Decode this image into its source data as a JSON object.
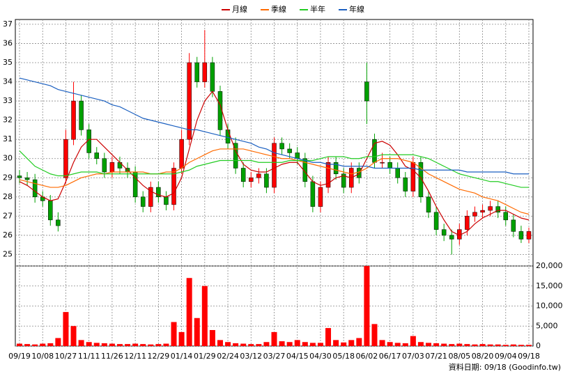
{
  "chart_data": {
    "type": "candlestick",
    "legend": "top",
    "grid": true,
    "source": "資料日期: 09/18 (Goodinfo.tw)",
    "up_color": "#ff0000",
    "down_color": "#00a000",
    "categories": [
      "09/19",
      null,
      null,
      "10/08",
      null,
      null,
      "10/27",
      null,
      null,
      "11/11",
      null,
      null,
      "11/26",
      null,
      null,
      "12/11",
      null,
      null,
      "12/29",
      null,
      null,
      "01/14",
      null,
      null,
      "01/29",
      null,
      null,
      "02/24",
      null,
      null,
      "03/12",
      null,
      null,
      "03/27",
      null,
      null,
      "04/15",
      null,
      null,
      "04/30",
      null,
      null,
      "05/18",
      null,
      null,
      "06/02",
      null,
      null,
      "06/17",
      null,
      null,
      "07/03",
      null,
      null,
      "07/21",
      null,
      null,
      "08/05",
      null,
      null,
      "08/20",
      null,
      null,
      "09/04",
      null,
      null,
      "09/18"
    ],
    "open": [
      29.1,
      29.0,
      28.9,
      28.0,
      27.8,
      26.8,
      29.0,
      31.0,
      33.0,
      31.5,
      30.3,
      30.0,
      29.3,
      29.8,
      29.5,
      29.3,
      28.0,
      27.5,
      28.5,
      28.0,
      27.6,
      29.5,
      31.0,
      35.0,
      34.0,
      35.0,
      33.5,
      31.5,
      30.8,
      29.5,
      28.8,
      29.0,
      29.2,
      28.5,
      30.8,
      30.5,
      30.3,
      30.0,
      28.8,
      27.5,
      28.5,
      29.8,
      29.2,
      28.5,
      29.5,
      34.0,
      31.0,
      29.8,
      29.8,
      29.5,
      29.0,
      28.3,
      29.8,
      28.0,
      27.2,
      26.3,
      26.0,
      25.8,
      26.3,
      27.0,
      27.2,
      27.3,
      27.5,
      27.2,
      26.8,
      26.2,
      25.8
    ],
    "high": [
      29.4,
      29.3,
      29.2,
      28.3,
      28.1,
      27.2,
      31.5,
      34.0,
      33.3,
      31.8,
      30.6,
      30.3,
      30.1,
      30.1,
      29.8,
      29.6,
      28.3,
      28.8,
      28.8,
      28.3,
      29.8,
      31.5,
      35.5,
      35.3,
      36.7,
      35.3,
      33.8,
      31.8,
      31.1,
      29.8,
      29.3,
      29.5,
      29.5,
      31.1,
      31.1,
      30.8,
      30.6,
      30.3,
      29.1,
      28.8,
      30.1,
      30.1,
      29.5,
      29.8,
      29.8,
      35.0,
      31.3,
      30.3,
      30.1,
      29.8,
      29.3,
      30.1,
      30.1,
      28.3,
      27.5,
      26.6,
      26.3,
      26.6,
      27.3,
      27.5,
      27.6,
      27.8,
      27.8,
      27.5,
      27.1,
      26.5,
      26.4
    ],
    "low": [
      28.7,
      28.6,
      27.7,
      27.5,
      26.5,
      26.2,
      28.7,
      30.7,
      31.2,
      30.0,
      29.7,
      29.0,
      29.0,
      29.2,
      29.0,
      27.7,
      27.2,
      27.2,
      27.7,
      27.3,
      27.3,
      29.2,
      30.7,
      33.7,
      33.7,
      33.2,
      31.2,
      30.5,
      29.2,
      28.5,
      28.5,
      28.7,
      28.2,
      28.2,
      30.2,
      30.0,
      29.7,
      28.5,
      27.2,
      27.2,
      28.2,
      28.9,
      28.2,
      28.2,
      28.7,
      31.8,
      29.5,
      29.5,
      29.2,
      28.7,
      28.0,
      28.0,
      27.7,
      26.9,
      26.0,
      25.7,
      25.0,
      25.5,
      26.0,
      26.7,
      26.9,
      27.0,
      26.9,
      26.5,
      25.9,
      25.6,
      25.6
    ],
    "close": [
      29.0,
      28.9,
      28.0,
      27.8,
      26.8,
      26.5,
      31.0,
      33.0,
      31.5,
      30.3,
      30.0,
      29.3,
      29.8,
      29.5,
      29.3,
      28.0,
      27.5,
      28.5,
      28.0,
      27.6,
      29.5,
      31.0,
      35.0,
      34.0,
      35.0,
      33.5,
      31.5,
      30.8,
      29.5,
      28.8,
      29.0,
      29.2,
      28.5,
      30.8,
      30.5,
      30.3,
      30.0,
      28.8,
      27.5,
      28.5,
      29.8,
      29.2,
      28.5,
      29.5,
      29.0,
      33.0,
      29.8,
      29.8,
      29.5,
      29.0,
      28.3,
      29.8,
      28.0,
      27.2,
      26.3,
      26.0,
      25.8,
      26.3,
      27.0,
      27.2,
      27.3,
      27.5,
      27.2,
      26.8,
      26.2,
      25.8,
      26.2
    ],
    "series": [
      {
        "name": "月線",
        "color": "#cc0000",
        "values": [
          28.8,
          28.6,
          28.3,
          28.0,
          27.8,
          27.9,
          28.8,
          29.8,
          30.6,
          31.0,
          31.0,
          30.6,
          30.2,
          29.8,
          29.4,
          29.0,
          28.6,
          28.3,
          28.1,
          28.0,
          28.2,
          29.0,
          30.5,
          32.0,
          33.0,
          33.5,
          32.8,
          31.5,
          30.4,
          29.7,
          29.4,
          29.3,
          29.3,
          29.5,
          29.7,
          29.8,
          29.8,
          29.3,
          28.8,
          28.6,
          28.7,
          29.0,
          29.1,
          29.0,
          29.2,
          30.0,
          30.8,
          30.9,
          30.7,
          30.2,
          29.6,
          29.4,
          29.0,
          28.3,
          27.5,
          26.8,
          26.2,
          26.0,
          26.2,
          26.6,
          26.9,
          27.1,
          27.3,
          27.3,
          27.1,
          26.9,
          26.8
        ]
      },
      {
        "name": "季線",
        "color": "#ff6a00",
        "values": [
          28.9,
          28.8,
          28.7,
          28.6,
          28.5,
          28.5,
          28.6,
          28.8,
          29.0,
          29.1,
          29.2,
          29.2,
          29.3,
          29.3,
          29.3,
          29.3,
          29.3,
          29.2,
          29.2,
          29.3,
          29.3,
          29.5,
          29.8,
          30.0,
          30.2,
          30.4,
          30.5,
          30.5,
          30.5,
          30.5,
          30.4,
          30.3,
          30.2,
          30.1,
          30.0,
          30.0,
          29.9,
          29.8,
          29.7,
          29.6,
          29.5,
          29.4,
          29.3,
          29.2,
          29.3,
          29.5,
          29.8,
          30.0,
          30.0,
          30.0,
          29.9,
          29.8,
          29.5,
          29.2,
          29.0,
          28.8,
          28.6,
          28.4,
          28.3,
          28.2,
          28.0,
          27.9,
          27.8,
          27.6,
          27.4,
          27.2,
          27.1
        ]
      },
      {
        "name": "半年",
        "color": "#22cc22",
        "values": [
          30.4,
          30.0,
          29.6,
          29.4,
          29.2,
          29.1,
          29.1,
          29.2,
          29.3,
          29.3,
          29.3,
          29.2,
          29.2,
          29.2,
          29.2,
          29.2,
          29.2,
          29.2,
          29.2,
          29.2,
          29.2,
          29.3,
          29.4,
          29.6,
          29.7,
          29.8,
          29.9,
          29.9,
          29.9,
          29.9,
          29.9,
          29.8,
          29.8,
          29.8,
          29.8,
          29.9,
          29.9,
          29.9,
          29.9,
          30.0,
          30.1,
          30.1,
          30.1,
          30.0,
          30.0,
          30.1,
          30.1,
          30.2,
          30.2,
          30.2,
          30.2,
          30.2,
          30.1,
          30.0,
          29.8,
          29.6,
          29.4,
          29.2,
          29.1,
          29.0,
          28.9,
          28.8,
          28.8,
          28.7,
          28.6,
          28.5,
          28.5
        ]
      },
      {
        "name": "年線",
        "color": "#1a5fc0",
        "values": [
          34.2,
          34.1,
          34.0,
          33.9,
          33.8,
          33.6,
          33.5,
          33.4,
          33.3,
          33.2,
          33.1,
          33.0,
          32.8,
          32.7,
          32.5,
          32.3,
          32.1,
          32.0,
          31.9,
          31.8,
          31.7,
          31.6,
          31.5,
          31.5,
          31.4,
          31.3,
          31.2,
          31.1,
          31.0,
          30.9,
          30.8,
          30.6,
          30.5,
          30.3,
          30.2,
          30.1,
          30.0,
          29.9,
          29.8,
          29.8,
          29.7,
          29.7,
          29.6,
          29.6,
          29.6,
          29.6,
          29.5,
          29.5,
          29.5,
          29.5,
          29.5,
          29.5,
          29.4,
          29.4,
          29.4,
          29.4,
          29.4,
          29.4,
          29.3,
          29.3,
          29.3,
          29.3,
          29.3,
          29.3,
          29.2,
          29.2,
          29.2
        ]
      }
    ],
    "ylim": [
      24.4,
      37.25
    ],
    "yticks": [
      25,
      26,
      27,
      28,
      29,
      30,
      31,
      32,
      33,
      34,
      35,
      36,
      37
    ],
    "volume": {
      "color": "#ff0000",
      "values": [
        600,
        500,
        400,
        600,
        700,
        2000,
        8500,
        5000,
        1500,
        1000,
        800,
        700,
        600,
        500,
        500,
        600,
        500,
        400,
        500,
        600,
        6000,
        3500,
        17000,
        7000,
        15000,
        4000,
        1500,
        1000,
        700,
        600,
        500,
        500,
        1000,
        3500,
        1200,
        1000,
        1500,
        1000,
        800,
        800,
        4500,
        1500,
        900,
        1500,
        2000,
        20000,
        5500,
        1500,
        1000,
        800,
        700,
        2500,
        1000,
        800,
        700,
        600,
        500,
        600,
        500,
        400,
        500,
        400,
        400,
        300,
        400,
        300,
        300
      ],
      "ylim": [
        0,
        20000
      ],
      "yticks": [
        0,
        {
          "value": 5000,
          "label": "5,000"
        },
        {
          "value": 10000,
          "label": "10,000"
        },
        {
          "value": 15000,
          "label": "15,000"
        },
        {
          "value": 20000,
          "label": "20,000"
        }
      ]
    }
  }
}
